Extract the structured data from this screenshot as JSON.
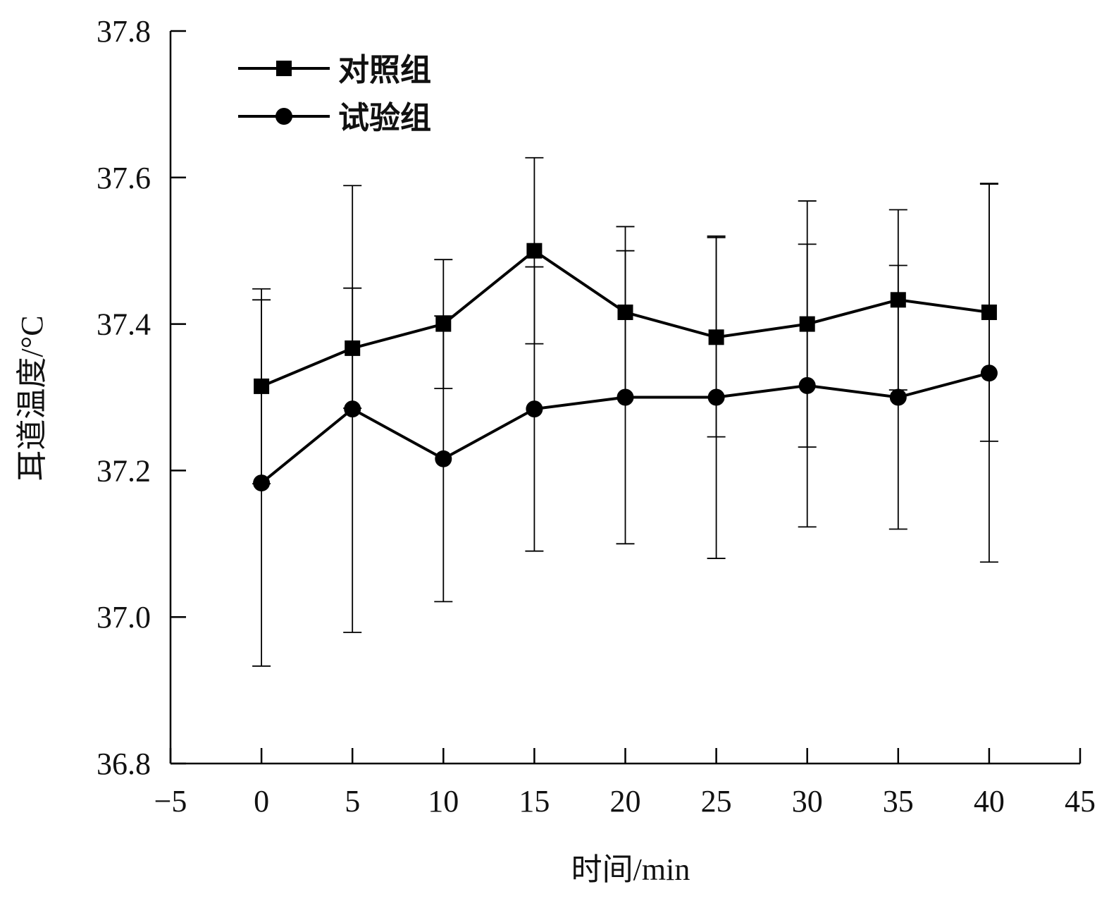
{
  "chart_data": {
    "type": "line",
    "title": "",
    "xlabel": "时间/min",
    "ylabel": "耳道温度/°C",
    "xlim": [
      -5,
      45
    ],
    "ylim": [
      36.8,
      37.8
    ],
    "xticks": [
      -5,
      0,
      5,
      10,
      15,
      20,
      25,
      30,
      35,
      40,
      45
    ],
    "xtick_labels": [
      "−5",
      "0",
      "5",
      "10",
      "15",
      "20",
      "25",
      "30",
      "35",
      "40",
      "45"
    ],
    "yticks": [
      36.8,
      37.0,
      37.2,
      37.4,
      37.6,
      37.8
    ],
    "ytick_labels": [
      "36.8",
      "37.0",
      "37.2",
      "37.4",
      "37.6",
      "37.8"
    ],
    "grid": false,
    "legend_position": "top-left",
    "x": [
      0,
      5,
      10,
      15,
      20,
      25,
      30,
      35,
      40
    ],
    "series": [
      {
        "name": "对照组",
        "marker": "square",
        "values": [
          37.315,
          37.367,
          37.4,
          37.5,
          37.416,
          37.382,
          37.4,
          37.433,
          37.416
        ],
        "error": [
          0.133,
          0.082,
          0.088,
          0.127,
          0.117,
          0.136,
          0.168,
          0.123,
          0.176
        ]
      },
      {
        "name": "试验组",
        "marker": "circle",
        "values": [
          37.183,
          37.284,
          37.216,
          37.284,
          37.3,
          37.3,
          37.316,
          37.3,
          37.333
        ],
        "error": [
          0.25,
          0.305,
          0.195,
          0.194,
          0.2,
          0.22,
          0.193,
          0.18,
          0.258
        ]
      }
    ],
    "color": "#000000"
  }
}
